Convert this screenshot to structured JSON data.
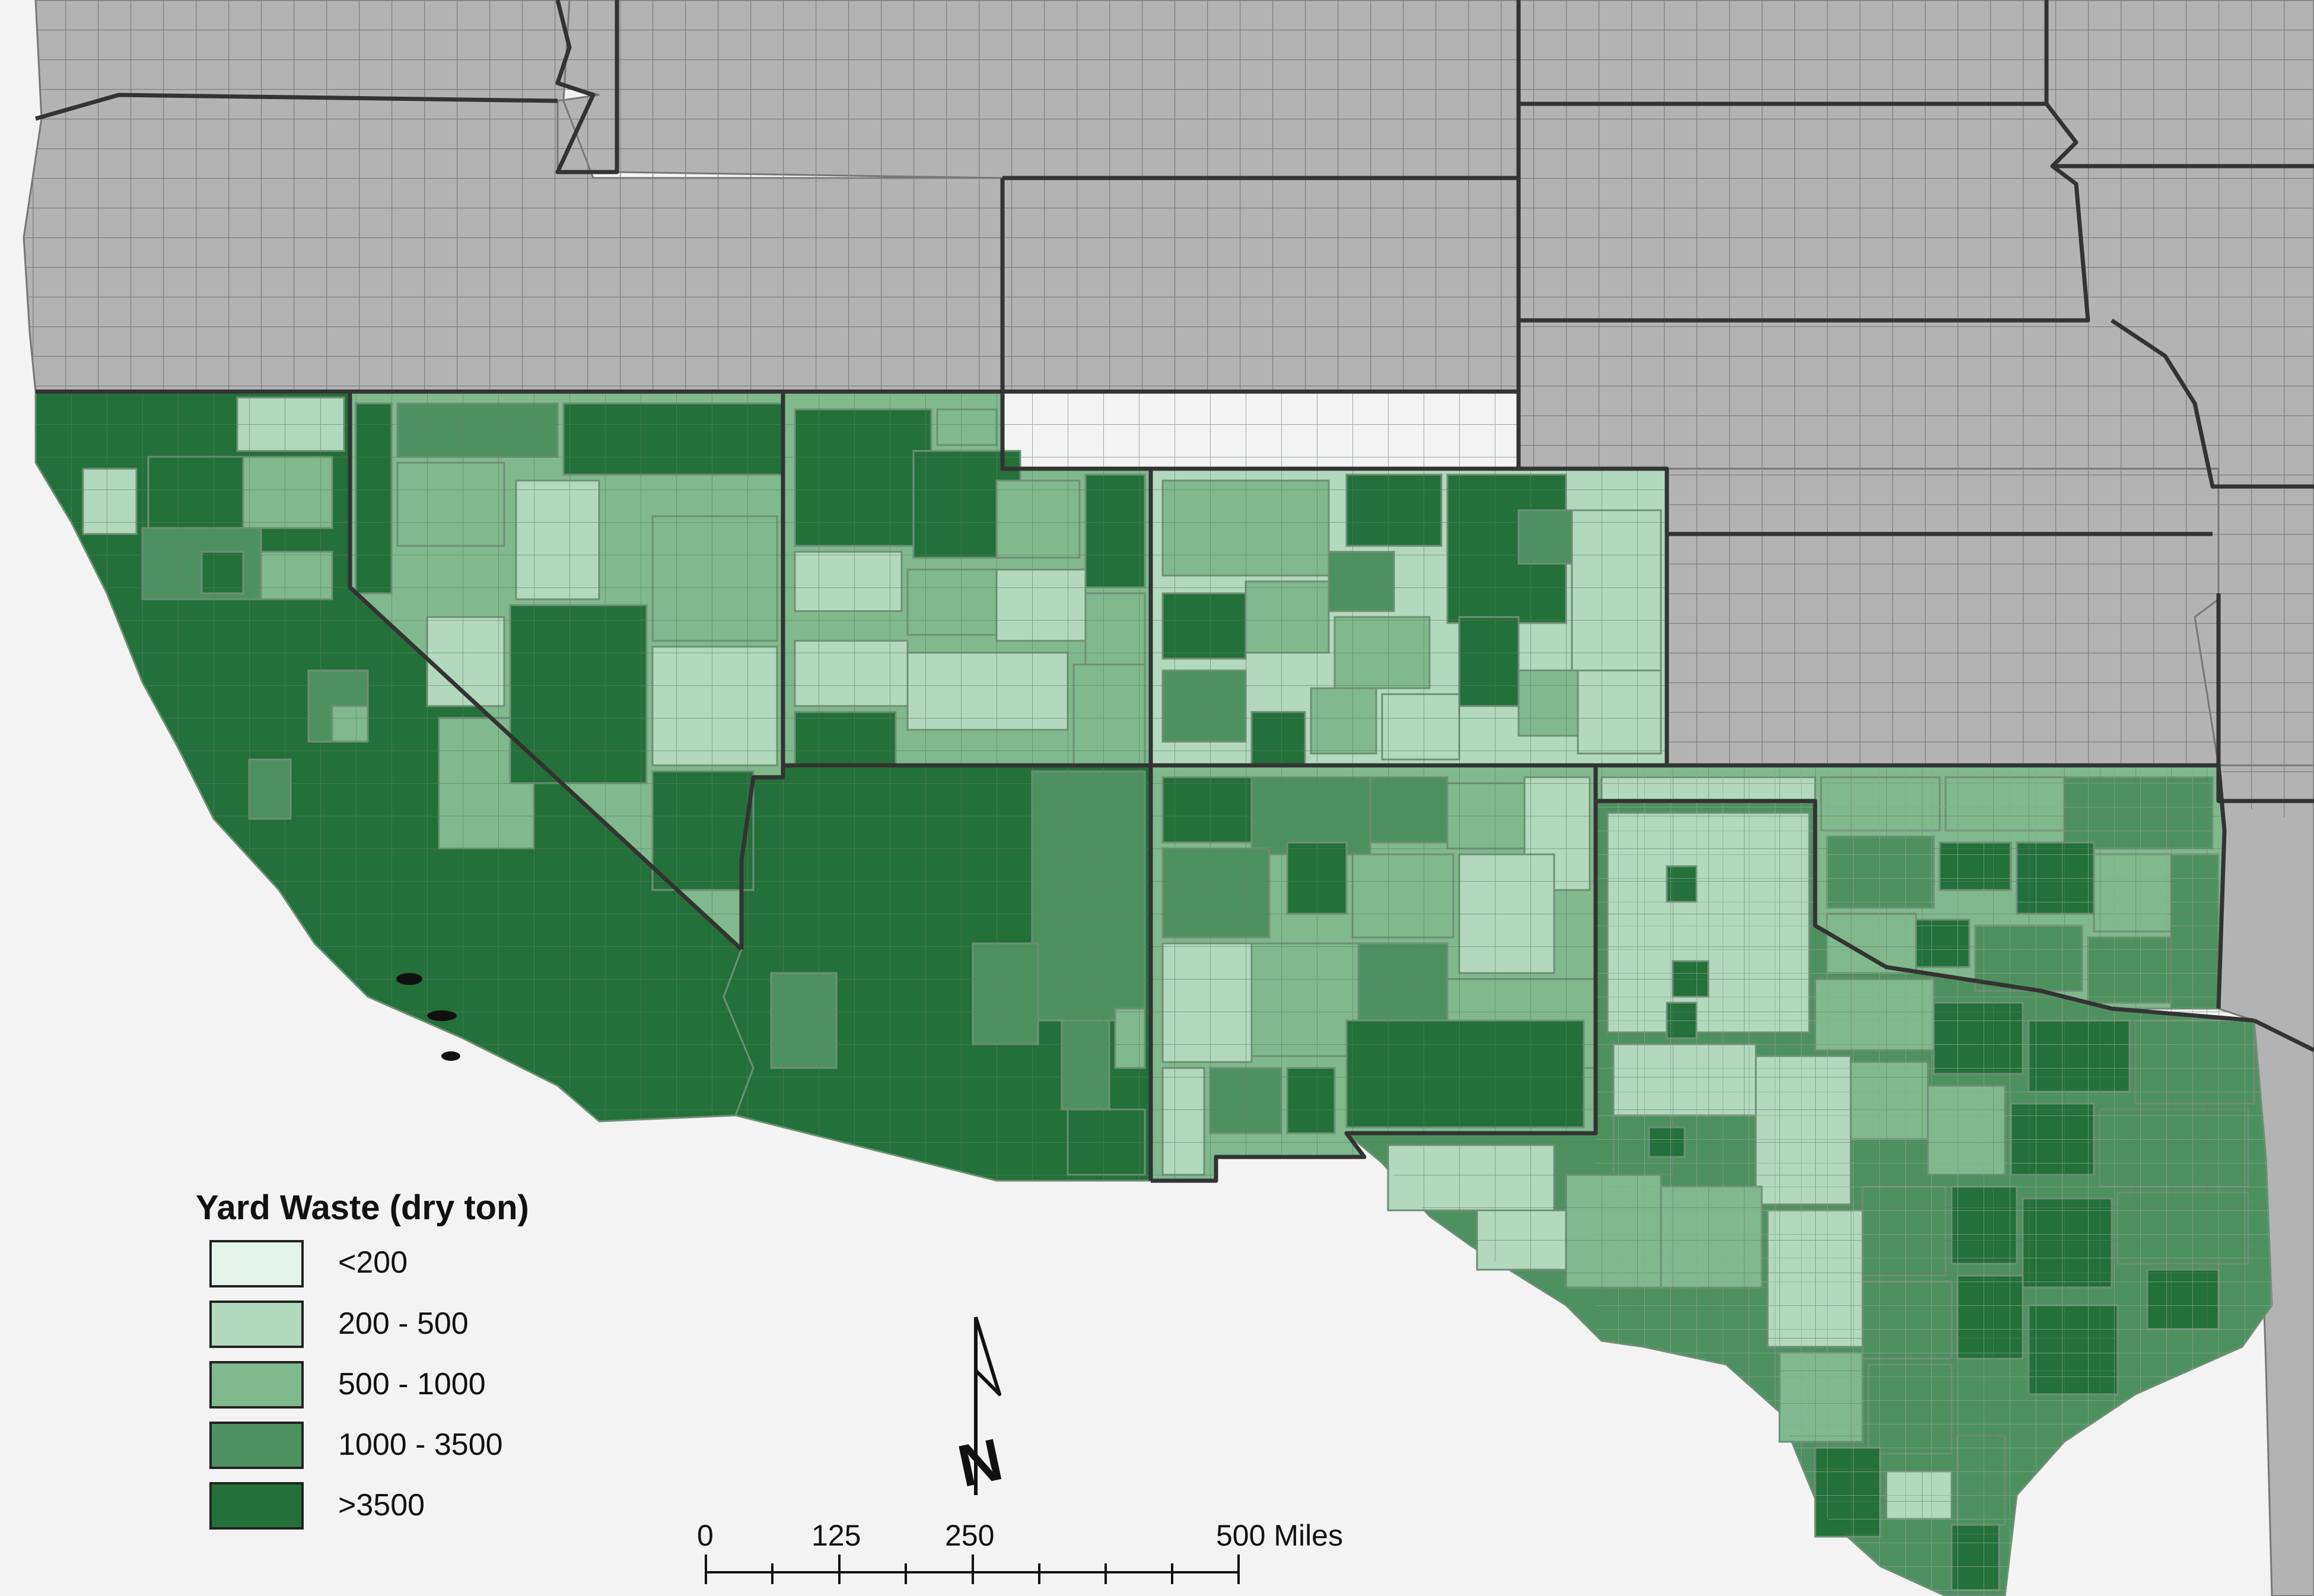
{
  "legend": {
    "title": "Yard Waste (dry ton)",
    "classes": [
      {
        "label": "<200",
        "color": "#e3f5ea"
      },
      {
        "label": "200 - 500",
        "color": "#b2d9bd"
      },
      {
        "label": "500 - 1000",
        "color": "#7fb98d"
      },
      {
        "label": "1000 - 3500",
        "color": "#4e9160"
      },
      {
        "label": ">3500",
        "color": "#23703a"
      }
    ]
  },
  "scale_bar": {
    "ticks": [
      "0",
      "125",
      "250",
      "500 Miles"
    ]
  },
  "north_arrow": {
    "letter": "N"
  },
  "colors": {
    "no_data": "#b3b3b3",
    "background": "#f3f3f3",
    "border": "#333333"
  }
}
